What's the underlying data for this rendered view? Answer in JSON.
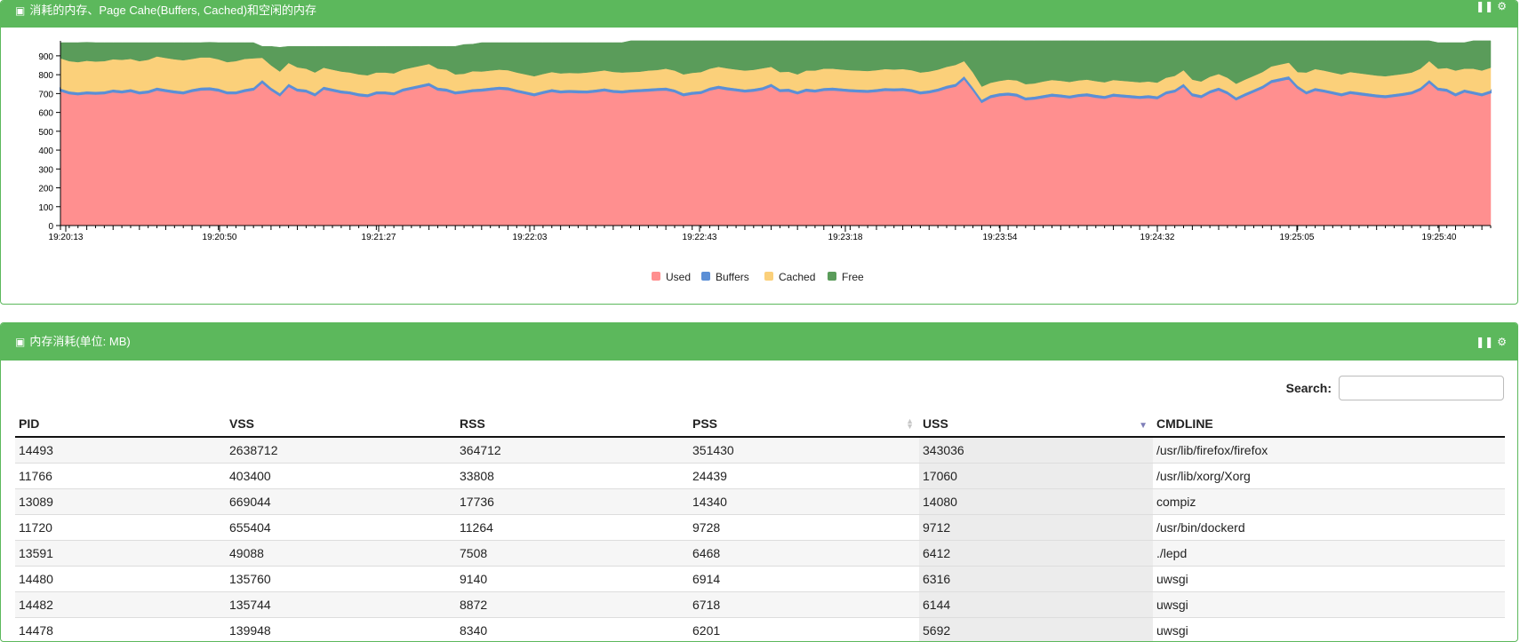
{
  "panels": {
    "chart_panel": {
      "icon": "memory-icon",
      "title": "消耗的内存、Page Cahe(Buffers, Cached)和空闲的内存"
    },
    "table_panel": {
      "icon": "memory-icon",
      "title": "内存消耗(单位: MB)"
    }
  },
  "controls": {
    "pause_icon": "pause-icon",
    "settings_icon": "gear-icon"
  },
  "colors": {
    "header_green": "#5cb85c",
    "used": "#ff8f8f",
    "buffers": "#5b8fd6",
    "cached": "#fbd07a",
    "free": "#5a9c5a"
  },
  "chart_data": {
    "type": "area",
    "stacked": true,
    "ylim": [
      0,
      970
    ],
    "yticks": [
      0,
      100,
      200,
      300,
      400,
      500,
      600,
      700,
      800,
      900
    ],
    "x_tick_labels": [
      "19:20:13",
      "19:20:50",
      "19:21:27",
      "19:22:03",
      "19:22:43",
      "19:23:18",
      "19:23:54",
      "19:24:32",
      "19:25:05",
      "19:25:40"
    ],
    "legend_position": "bottom",
    "series": [
      {
        "name": "Used",
        "color": "#ff8f8f",
        "values": [
          715,
          700,
          695,
          700,
          698,
          700,
          710,
          705,
          712,
          700,
          705,
          720,
          712,
          705,
          700,
          712,
          720,
          722,
          715,
          700,
          700,
          712,
          720,
          760,
          720,
          690,
          740,
          715,
          710,
          690,
          725,
          715,
          705,
          700,
          690,
          685,
          700,
          700,
          695,
          715,
          725,
          735,
          745,
          720,
          715,
          700,
          705,
          712,
          715,
          720,
          725,
          722,
          710,
          700,
          690,
          702,
          712,
          705,
          708,
          706,
          705,
          710,
          716,
          708,
          705,
          710,
          712,
          715,
          718,
          720,
          710,
          690,
          698,
          702,
          720,
          730,
          722,
          716,
          710,
          714,
          722,
          740,
          712,
          714,
          700,
          715,
          710,
          718,
          720,
          716,
          712,
          710,
          708,
          712,
          718,
          716,
          718,
          712,
          700,
          705,
          715,
          730,
          740,
          780,
          720,
          655,
          680,
          690,
          694,
          688,
          668,
          672,
          680,
          688,
          684,
          678,
          686,
          690,
          682,
          676,
          688,
          684,
          680,
          676,
          680,
          674,
          700,
          710,
          740,
          690,
          680,
          705,
          720,
          700,
          668,
          690,
          710,
          730,
          760,
          770,
          780,
          730,
          700,
          718,
          710,
          700,
          690,
          702,
          696,
          690,
          684,
          680,
          686,
          692,
          700,
          720,
          760,
          720,
          714,
          690,
          710,
          700,
          690,
          705
        ]
      },
      {
        "name": "Buffers",
        "color": "#5b8fd6",
        "values": [
          12,
          12,
          12,
          12,
          12,
          12,
          12,
          12,
          12,
          12,
          12,
          12,
          12,
          12,
          12,
          12,
          12,
          12,
          12,
          12,
          12,
          12,
          12,
          12,
          12,
          12,
          12,
          12,
          12,
          12,
          12,
          12,
          12,
          12,
          12,
          12,
          12,
          12,
          12,
          12,
          12,
          12,
          12,
          12,
          12,
          12,
          12,
          12,
          12,
          12,
          12,
          12,
          12,
          12,
          12,
          12,
          12,
          12,
          12,
          12,
          12,
          12,
          12,
          12,
          12,
          12,
          12,
          12,
          12,
          12,
          12,
          12,
          12,
          12,
          12,
          12,
          12,
          12,
          12,
          12,
          12,
          12,
          12,
          12,
          12,
          12,
          12,
          12,
          12,
          12,
          12,
          12,
          12,
          12,
          12,
          12,
          12,
          12,
          12,
          12,
          12,
          12,
          12,
          12,
          12,
          12,
          12,
          12,
          12,
          12,
          12,
          12,
          12,
          12,
          12,
          12,
          12,
          12,
          12,
          12,
          12,
          12,
          12,
          12,
          12,
          12,
          12,
          12,
          12,
          12,
          12,
          12,
          12,
          12,
          12,
          12,
          12,
          12,
          12,
          12,
          12,
          12,
          12,
          12,
          12,
          12,
          12,
          12,
          12,
          12,
          12,
          12,
          12,
          12,
          12,
          12,
          12,
          12,
          12,
          12,
          12,
          12,
          12,
          12
        ]
      },
      {
        "name": "Cached",
        "color": "#fbd07a",
        "values": [
          160,
          160,
          160,
          162,
          160,
          160,
          160,
          162,
          160,
          160,
          162,
          165,
          165,
          165,
          165,
          160,
          160,
          158,
          155,
          155,
          160,
          160,
          155,
          118,
          118,
          115,
          110,
          112,
          110,
          110,
          100,
          100,
          100,
          100,
          100,
          100,
          100,
          100,
          100,
          100,
          100,
          100,
          100,
          100,
          100,
          90,
          88,
          95,
          90,
          90,
          90,
          90,
          90,
          90,
          90,
          90,
          90,
          90,
          90,
          90,
          95,
          95,
          95,
          95,
          95,
          92,
          92,
          95,
          95,
          100,
          100,
          100,
          100,
          100,
          100,
          100,
          100,
          100,
          100,
          100,
          100,
          90,
          90,
          90,
          90,
          95,
          100,
          102,
          100,
          100,
          100,
          100,
          100,
          100,
          100,
          100,
          100,
          100,
          100,
          100,
          100,
          100,
          100,
          80,
          80,
          70,
          65,
          65,
          68,
          70,
          70,
          70,
          72,
          72,
          72,
          72,
          72,
          72,
          72,
          72,
          72,
          72,
          72,
          72,
          72,
          72,
          72,
          72,
          72,
          72,
          72,
          72,
          72,
          72,
          72,
          72,
          72,
          72,
          72,
          72,
          72,
          72,
          100,
          100,
          100,
          100,
          100,
          100,
          100,
          100,
          100,
          100,
          100,
          100,
          100,
          100,
          100,
          100,
          110,
          120,
          110,
          120,
          120,
          120
        ]
      },
      {
        "name": "Free",
        "color": "#5a9c5a",
        "values": [
          83,
          98,
          103,
          98,
          100,
          98,
          88,
          91,
          86,
          98,
          91,
          73,
          81,
          88,
          93,
          86,
          78,
          80,
          88,
          103,
          98,
          86,
          83,
          60,
          100,
          128,
          88,
          111,
          118,
          138,
          113,
          123,
          133,
          138,
          148,
          153,
          138,
          138,
          143,
          123,
          113,
          103,
          93,
          118,
          123,
          148,
          155,
          143,
          153,
          148,
          143,
          146,
          158,
          168,
          178,
          166,
          156,
          163,
          160,
          162,
          158,
          153,
          147,
          155,
          158,
          166,
          164,
          158,
          155,
          148,
          158,
          178,
          170,
          166,
          148,
          138,
          146,
          152,
          158,
          154,
          146,
          138,
          166,
          164,
          178,
          158,
          158,
          148,
          148,
          152,
          156,
          158,
          160,
          156,
          150,
          152,
          150,
          156,
          168,
          163,
          153,
          138,
          128,
          108,
          168,
          243,
          223,
          213,
          206,
          210,
          230,
          226,
          216,
          208,
          212,
          218,
          210,
          206,
          214,
          220,
          208,
          212,
          216,
          220,
          216,
          222,
          196,
          186,
          156,
          206,
          216,
          191,
          176,
          196,
          228,
          206,
          186,
          166,
          136,
          126,
          116,
          166,
          168,
          150,
          158,
          168,
          178,
          166,
          172,
          178,
          184,
          188,
          182,
          176,
          168,
          148,
          108,
          138,
          134,
          148,
          138,
          148,
          158,
          143
        ]
      }
    ]
  },
  "table": {
    "search_label": "Search:",
    "search_value": "",
    "columns": [
      "PID",
      "VSS",
      "RSS",
      "PSS",
      "USS",
      "CMDLINE"
    ],
    "rows": [
      [
        "14493",
        "2638712",
        "364712",
        "351430",
        "343036",
        "/usr/lib/firefox/firefox"
      ],
      [
        "11766",
        "403400",
        "33808",
        "24439",
        "17060",
        "/usr/lib/xorg/Xorg"
      ],
      [
        "13089",
        "669044",
        "17736",
        "14340",
        "14080",
        "compiz"
      ],
      [
        "11720",
        "655404",
        "11264",
        "9728",
        "9712",
        "/usr/bin/dockerd"
      ],
      [
        "13591",
        "49088",
        "7508",
        "6468",
        "6412",
        "./lepd"
      ],
      [
        "14480",
        "135760",
        "9140",
        "6914",
        "6316",
        "uwsgi"
      ],
      [
        "14482",
        "135744",
        "8872",
        "6718",
        "6144",
        "uwsgi"
      ],
      [
        "14478",
        "139948",
        "8340",
        "6201",
        "5692",
        "uwsgi"
      ]
    ]
  }
}
